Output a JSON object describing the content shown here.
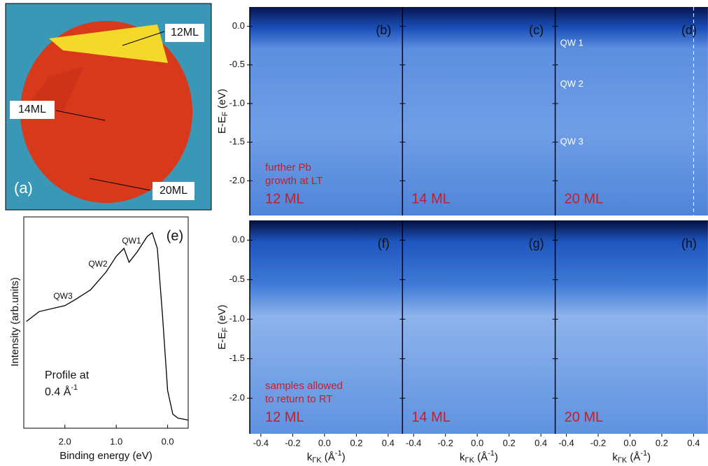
{
  "chart_data": [
    {
      "type": "map",
      "panel": "(a)",
      "labels": [
        "12ML",
        "14ML",
        "20ML"
      ]
    },
    {
      "type": "line",
      "panel": "(e)",
      "xlabel": "Binding energy (eV)",
      "ylabel": "Intensity (arb.units)",
      "annotations": [
        "QW1",
        "QW2",
        "QW3"
      ],
      "profile": [
        "Profile at",
        "0.4 Å",
        "-1"
      ],
      "xlim": [
        2.8,
        -0.4
      ],
      "ylim": [
        0,
        1
      ],
      "xticks": [
        {
          "value": 2,
          "label": "2.0"
        },
        {
          "value": 1,
          "label": "1.0"
        },
        {
          "value": 0,
          "label": "0.0"
        }
      ],
      "color": "#000000",
      "x": [
        2.75,
        2.5,
        2.0,
        1.8,
        1.5,
        1.2,
        1.0,
        0.85,
        0.75,
        0.6,
        0.4,
        0.3,
        0.2,
        0.1,
        0.0,
        -0.1,
        -0.2,
        -0.4
      ],
      "y": [
        0.52,
        0.57,
        0.6,
        0.63,
        0.68,
        0.77,
        0.85,
        0.89,
        0.82,
        0.87,
        0.95,
        0.97,
        0.89,
        0.55,
        0.17,
        0.05,
        0.03,
        0.02
      ]
    },
    {
      "type": "arpes",
      "ylabel": [
        "E-E",
        "F",
        " (eV)"
      ],
      "xlabel": [
        "k",
        "ΓK",
        " (Å",
        "-1",
        ")"
      ],
      "xlim": [
        -0.47,
        0.49
      ],
      "ylim": [
        -2.45,
        0.25
      ],
      "xticks": [
        -0.4,
        -0.2,
        {
          "value": 0,
          "label": "0.0"
        },
        0.2,
        0.4
      ],
      "yticks": [
        {
          "value": 0,
          "label": "0.0"
        },
        -0.5,
        {
          "value": -1,
          "label": "-1.0"
        },
        -1.5,
        {
          "value": -2,
          "label": "-2.0"
        }
      ],
      "qw_labels": [
        "QW 1",
        "QW 2",
        "QW 3"
      ],
      "dashed_k": 0.4,
      "rows": [
        {
          "note": [
            "further Pb",
            "growth at LT"
          ],
          "panels": [
            {
              "label": "(b)",
              "thickness": "12 ML"
            },
            {
              "label": "(c)",
              "thickness": "14 ML"
            },
            {
              "label": "(d)",
              "thickness": "20 ML"
            }
          ]
        },
        {
          "note": [
            "samples allowed",
            "to return to RT"
          ],
          "panels": [
            {
              "label": "(f)",
              "thickness": "12 ML"
            },
            {
              "label": "(g)",
              "thickness": "14 ML"
            },
            {
              "label": "(h)",
              "thickness": "20 ML"
            }
          ]
        }
      ]
    }
  ]
}
